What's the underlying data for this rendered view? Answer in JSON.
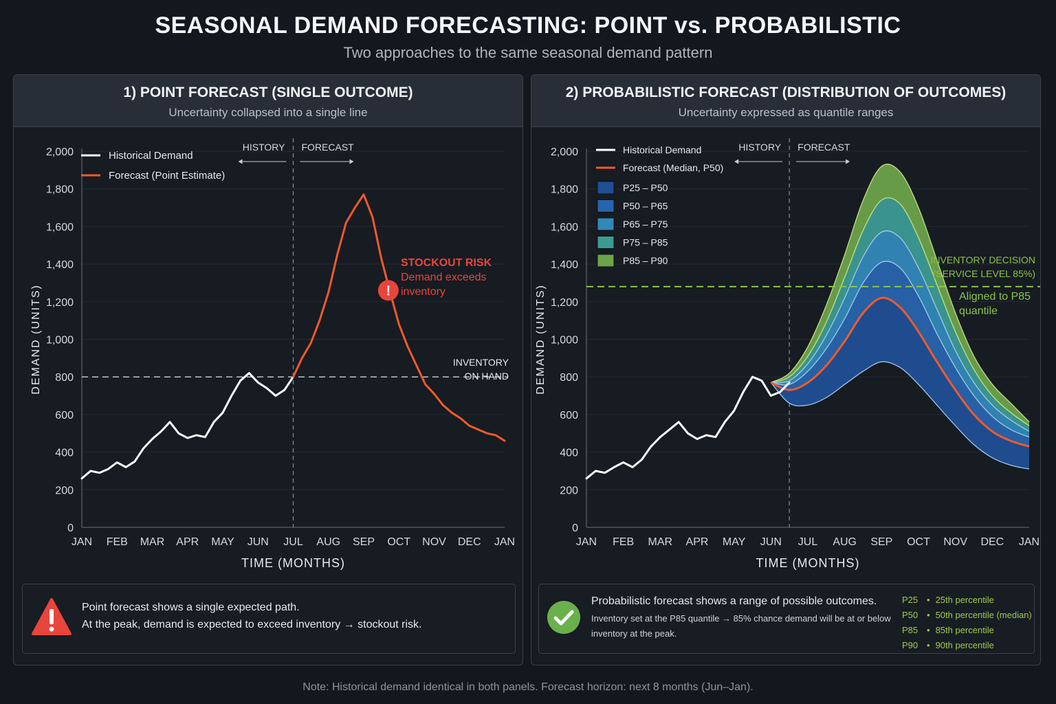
{
  "title": "SEASONAL DEMAND FORECASTING: POINT vs. PROBABILISTIC",
  "subtitle": "Two approaches to the same seasonal demand pattern",
  "footnote": "Note: Historical demand identical in both panels. Forecast horizon: next 8 months (Jun–Jan).",
  "colors": {
    "background": "#13171e",
    "historical": "#ffffff",
    "forecast": "#f05a2c",
    "stockout": "#e8453c",
    "inventory_line": "#bfc4cb",
    "service_level": "#8bc34a",
    "check": "#6ab04c"
  },
  "left_panel": {
    "title": "1) POINT FORECAST (SINGLE OUTCOME)",
    "subtitle": "Uncertainty collapsed into a single line",
    "history_label": "HISTORY",
    "forecast_label": "FORECAST",
    "legend": [
      "Historical Demand",
      "Forecast (Point Estimate)"
    ],
    "inventory_label": [
      "INVENTORY",
      "ON HAND"
    ],
    "stockout_title": "STOCKOUT RISK",
    "stockout_text": [
      "Demand exceeds",
      "inventory"
    ],
    "stockout_icon": "exclamation-icon",
    "note_icon": "warning-triangle-icon",
    "note_lines": [
      "Point forecast shows a single expected path.",
      "At the peak, demand is expected to exceed inventory → stockout risk."
    ]
  },
  "right_panel": {
    "title": "2) PROBABILISTIC FORECAST (DISTRIBUTION OF OUTCOMES)",
    "subtitle": "Uncertainty expressed as quantile ranges",
    "history_label": "HISTORY",
    "forecast_label": "FORECAST",
    "legend": [
      "Historical Demand",
      "Forecast (Median, P50)",
      "P25 – P50",
      "P50 – P65",
      "P65 – P75",
      "P75 – P85",
      "P85 – P90"
    ],
    "decision_label": [
      "INVENTORY DECISION",
      "(SERVICE LEVEL 85%)"
    ],
    "aligned_label": [
      "Aligned to P85",
      "quantile"
    ],
    "note_icon": "check-circle-icon",
    "note_title": "Probabilistic forecast shows a range of possible outcomes.",
    "note_lines": [
      "Inventory set at the P85 quantile → 85% chance demand will be at or below",
      "inventory at the peak."
    ],
    "percentile_key": [
      {
        "code": "P25",
        "desc": "25th percentile"
      },
      {
        "code": "P50",
        "desc": "50th percentile (median)"
      },
      {
        "code": "P85",
        "desc": "85th percentile"
      },
      {
        "code": "P90",
        "desc": "90th percentile"
      }
    ]
  },
  "chart_data": [
    {
      "type": "line",
      "title": "1) POINT FORECAST (SINGLE OUTCOME)",
      "xlabel": "TIME (MONTHS)",
      "ylabel": "DEMAND (UNITS)",
      "x_ticks": [
        "JAN",
        "FEB",
        "MAR",
        "APR",
        "MAY",
        "JUN",
        "JUL",
        "AUG",
        "SEP",
        "OCT",
        "NOV",
        "DEC",
        "JAN"
      ],
      "ylim": [
        0,
        2000
      ],
      "y_ticks": [
        0,
        200,
        400,
        600,
        800,
        1000,
        1200,
        1400,
        1600,
        1800,
        2000
      ],
      "y_tick_labels": [
        "0",
        "200",
        "400",
        "600",
        "800",
        "1,000",
        "1,200",
        "1,400",
        "1,600",
        "1,800",
        "2,000"
      ],
      "grid": true,
      "legend_position": "top-left",
      "history_forecast_split": 6,
      "inventory_on_hand": 800,
      "stockout_point": {
        "x": 8.7,
        "y": 1260
      },
      "series": [
        {
          "name": "Historical Demand",
          "x": [
            0,
            0.25,
            0.5,
            0.75,
            1,
            1.25,
            1.5,
            1.75,
            2,
            2.25,
            2.5,
            2.75,
            3,
            3.25,
            3.5,
            3.75,
            4,
            4.25,
            4.5,
            4.75,
            5,
            5.25,
            5.5,
            5.75,
            6
          ],
          "values": [
            260,
            300,
            290,
            310,
            345,
            320,
            350,
            420,
            470,
            510,
            560,
            500,
            475,
            490,
            480,
            560,
            610,
            700,
            780,
            820,
            770,
            740,
            700,
            730,
            800
          ]
        },
        {
          "name": "Forecast (Point Estimate)",
          "x": [
            6,
            6.25,
            6.5,
            6.75,
            7,
            7.25,
            7.5,
            7.75,
            8,
            8.25,
            8.5,
            8.75,
            9,
            9.25,
            9.5,
            9.75,
            10,
            10.25,
            10.5,
            10.75,
            11,
            11.25,
            11.5,
            11.75,
            12
          ],
          "values": [
            800,
            900,
            980,
            1100,
            1250,
            1450,
            1620,
            1700,
            1770,
            1650,
            1430,
            1250,
            1080,
            960,
            860,
            760,
            710,
            650,
            610,
            580,
            540,
            520,
            500,
            490,
            460
          ]
        }
      ]
    },
    {
      "type": "area",
      "title": "2) PROBABILISTIC FORECAST (DISTRIBUTION OF OUTCOMES)",
      "xlabel": "TIME (MONTHS)",
      "ylabel": "DEMAND (UNITS)",
      "x_ticks": [
        "JAN",
        "FEB",
        "MAR",
        "APR",
        "MAY",
        "JUN",
        "JUL",
        "AUG",
        "SEP",
        "OCT",
        "NOV",
        "DEC",
        "JAN"
      ],
      "ylim": [
        0,
        2000
      ],
      "y_ticks": [
        0,
        200,
        400,
        600,
        800,
        1000,
        1200,
        1400,
        1600,
        1800,
        2000
      ],
      "y_tick_labels": [
        "0",
        "200",
        "400",
        "600",
        "800",
        "1,000",
        "1,200",
        "1,400",
        "1,600",
        "1,800",
        "2,000"
      ],
      "grid": true,
      "legend_position": "top-left",
      "history_forecast_split": 5.5,
      "service_level_inventory": 1280,
      "historical": {
        "name": "Historical Demand",
        "x": [
          0,
          0.25,
          0.5,
          0.75,
          1,
          1.25,
          1.5,
          1.75,
          2,
          2.25,
          2.5,
          2.75,
          3,
          3.25,
          3.5,
          3.75,
          4,
          4.25,
          4.5,
          4.75,
          5,
          5.25,
          5.5
        ],
        "values": [
          260,
          300,
          290,
          320,
          345,
          320,
          360,
          430,
          480,
          520,
          560,
          500,
          470,
          490,
          480,
          560,
          620,
          720,
          800,
          780,
          700,
          720,
          770
        ]
      },
      "forecast_x": [
        5.0,
        5.5,
        6.0,
        6.5,
        7.0,
        7.5,
        8.0,
        8.5,
        9.0,
        9.5,
        10.0,
        10.5,
        11.0,
        11.5,
        12.0
      ],
      "quantiles": [
        {
          "name": "P25",
          "values": [
            770,
            660,
            650,
            690,
            760,
            830,
            880,
            850,
            760,
            650,
            540,
            440,
            370,
            330,
            310
          ]
        },
        {
          "name": "P50",
          "values": [
            770,
            730,
            770,
            860,
            990,
            1140,
            1220,
            1170,
            1040,
            880,
            730,
            600,
            510,
            460,
            430
          ]
        },
        {
          "name": "P65",
          "values": [
            770,
            760,
            830,
            950,
            1110,
            1300,
            1410,
            1380,
            1230,
            1030,
            850,
            700,
            590,
            520,
            480
          ]
        },
        {
          "name": "P75",
          "values": [
            770,
            780,
            870,
            1020,
            1220,
            1440,
            1570,
            1540,
            1380,
            1160,
            940,
            770,
            650,
            570,
            510
          ]
        },
        {
          "name": "P85",
          "values": [
            770,
            800,
            910,
            1090,
            1330,
            1580,
            1740,
            1720,
            1540,
            1290,
            1040,
            840,
            700,
            610,
            540
          ]
        },
        {
          "name": "P90",
          "values": [
            770,
            820,
            960,
            1180,
            1450,
            1740,
            1920,
            1890,
            1700,
            1420,
            1140,
            910,
            760,
            660,
            560
          ]
        }
      ],
      "bands": [
        {
          "name": "P25 – P50",
          "from": "P25",
          "to": "P50",
          "color": "#1f4f95"
        },
        {
          "name": "P50 – P65",
          "from": "P50",
          "to": "P65",
          "color": "#2864ad"
        },
        {
          "name": "P65 – P75",
          "from": "P65",
          "to": "P75",
          "color": "#3288b8"
        },
        {
          "name": "P75 – P85",
          "from": "P75",
          "to": "P85",
          "color": "#3c9a93"
        },
        {
          "name": "P85 – P90",
          "from": "P85",
          "to": "P90",
          "color": "#6da24a"
        }
      ]
    }
  ]
}
